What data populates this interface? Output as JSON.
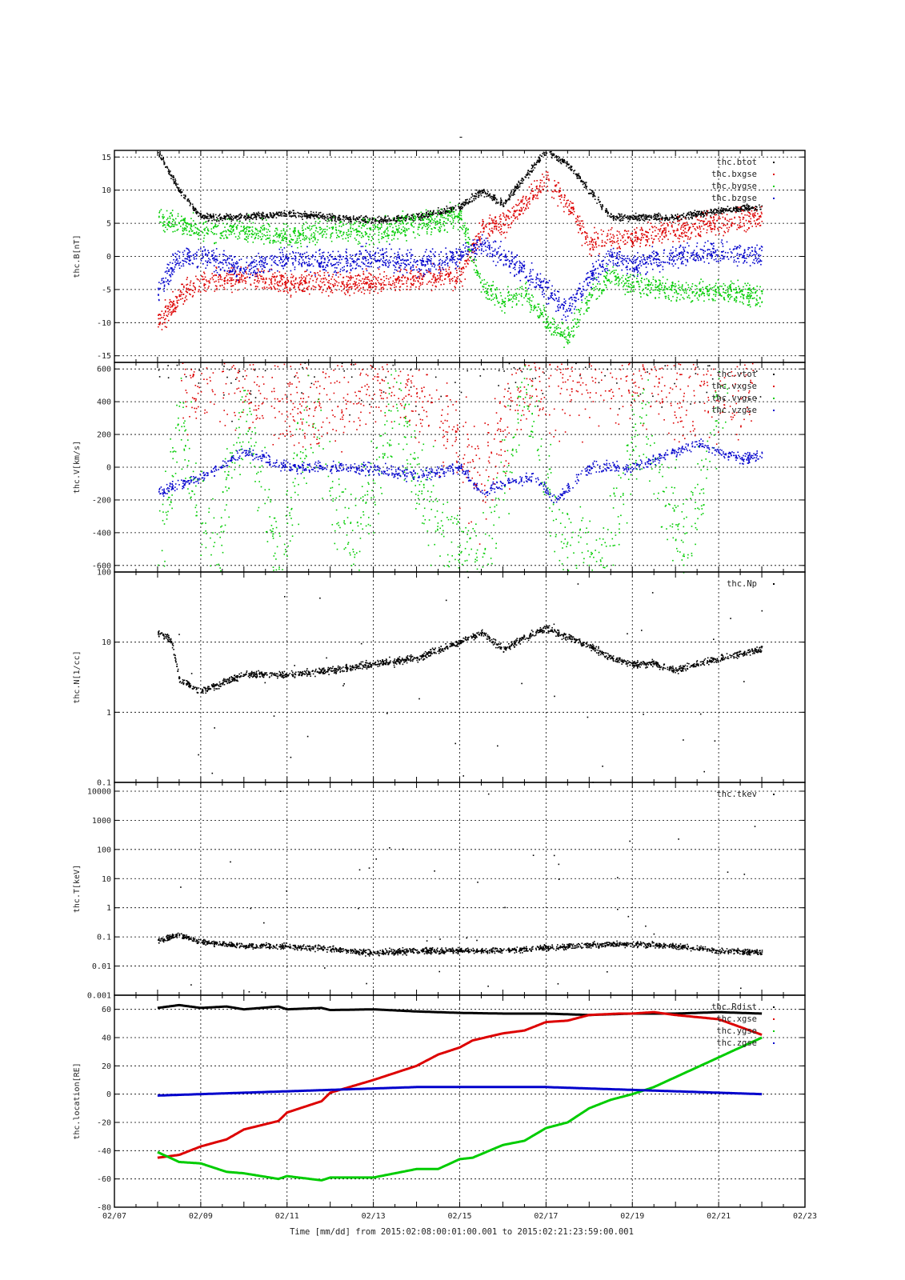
{
  "figure": {
    "title": "-",
    "footer": "Time [mm/dd]  from 2015:02:08:00:01:00.001  to  2015:02:21:23:59:00.001"
  },
  "colors": {
    "black": "#000000",
    "red": "#dd0000",
    "green": "#00cc00",
    "blue": "#0000cc"
  },
  "chart_data": [
    {
      "type": "scatter",
      "ylabel": "thc.B[nT]",
      "ylim": [
        -16,
        16
      ],
      "yticks": [
        15,
        10,
        5,
        0,
        -5,
        -10,
        -15
      ],
      "xlim": [
        "02/07",
        "02/23"
      ],
      "grid": true,
      "legend_placement": "top-right",
      "series": [
        {
          "name": "thc.btot",
          "color": "black",
          "x": [
            "02/08",
            "02/08.5",
            "02/09",
            "02/10",
            "02/11",
            "02/12",
            "02/13",
            "02/14",
            "02/15",
            "02/15.5",
            "02/16",
            "02/16.5",
            "02/17",
            "02/17.5",
            "02/18",
            "02/18.5",
            "02/19",
            "02/20",
            "02/21",
            "02/22"
          ],
          "values": [
            16,
            10,
            6,
            6,
            6.5,
            6,
            5.5,
            6,
            7.5,
            10,
            8,
            12,
            16,
            14,
            10,
            6,
            6,
            6,
            7,
            7.5
          ]
        },
        {
          "name": "thc.bxgse",
          "color": "red",
          "x": [
            "02/08",
            "02/08.5",
            "02/09",
            "02/10",
            "02/11",
            "02/12",
            "02/13",
            "02/14",
            "02/15",
            "02/15.5",
            "02/16",
            "02/16.5",
            "02/17",
            "02/17.5",
            "02/18",
            "02/18.5",
            "02/19",
            "02/20",
            "02/21",
            "02/22"
          ],
          "values": [
            -10,
            -6,
            -4,
            -3,
            -4,
            -4,
            -4,
            -3,
            -3,
            4,
            5,
            8,
            12,
            8,
            2,
            3,
            3,
            4,
            5,
            6
          ]
        },
        {
          "name": "thc.bygse",
          "color": "green",
          "x": [
            "02/08",
            "02/08.5",
            "02/09",
            "02/10",
            "02/11",
            "02/12",
            "02/13",
            "02/14",
            "02/15",
            "02/15.5",
            "02/16",
            "02/16.5",
            "02/17",
            "02/17.5",
            "02/18",
            "02/18.5",
            "02/19",
            "02/20",
            "02/21",
            "02/22"
          ],
          "values": [
            6,
            5,
            4,
            4,
            3,
            4,
            4,
            5,
            6,
            -4,
            -7,
            -5,
            -10,
            -12,
            -6,
            -3,
            -4,
            -5,
            -5,
            -6
          ]
        },
        {
          "name": "thc.bzgse",
          "color": "blue",
          "x": [
            "02/08",
            "02/08.5",
            "02/09",
            "02/10",
            "02/11",
            "02/12",
            "02/13",
            "02/14",
            "02/15",
            "02/15.5",
            "02/16",
            "02/16.5",
            "02/17",
            "02/17.5",
            "02/18",
            "02/18.5",
            "02/19",
            "02/20",
            "02/21",
            "02/22"
          ],
          "values": [
            -5,
            0,
            0,
            -2,
            0,
            -1,
            0,
            -1,
            0,
            2,
            0,
            -2,
            -5,
            -8,
            -3,
            0,
            -1,
            0,
            1,
            0
          ]
        }
      ]
    },
    {
      "type": "scatter",
      "ylabel": "thc.V[km/s]",
      "ylim": [
        -640,
        640
      ],
      "yticks": [
        600,
        400,
        200,
        0,
        -200,
        -400,
        -600
      ],
      "xlim": [
        "02/07",
        "02/23"
      ],
      "grid": true,
      "legend_placement": "top-right",
      "series": [
        {
          "name": "thc.vtot",
          "color": "black",
          "x": [
            "02/08",
            "02/22"
          ],
          "values": [
            640,
            640
          ]
        },
        {
          "name": "thc.vxgse",
          "color": "red",
          "x": [
            "02/08.5",
            "02/09.8",
            "02/10.8",
            "02/11.8",
            "02/13",
            "02/14.2",
            "02/15.5",
            "02/16.5",
            "02/18.2",
            "02/20.4",
            "02/21.8"
          ],
          "values": [
            600,
            450,
            400,
            350,
            550,
            450,
            -100,
            500,
            600,
            450,
            500
          ]
        },
        {
          "name": "thc.vygse",
          "color": "green",
          "x": [
            "02/08",
            "02/08.5",
            "02/09.3",
            "02/10",
            "02/10.8",
            "02/11.5",
            "02/12.5",
            "02/13.5",
            "02/14.5",
            "02/15.5",
            "02/16.5",
            "02/17.3",
            "02/18.3",
            "02/19.2",
            "02/20.2",
            "02/21.2"
          ],
          "values": [
            -500,
            300,
            -600,
            400,
            -600,
            300,
            -500,
            400,
            -400,
            -600,
            500,
            -400,
            -600,
            300,
            -500,
            600
          ]
        },
        {
          "name": "thc.vzgse",
          "color": "blue",
          "x": [
            "02/08",
            "02/08.3",
            "02/09",
            "02/10",
            "02/11",
            "02/12",
            "02/13",
            "02/14",
            "02/15",
            "02/15.5",
            "02/16",
            "02/16.7",
            "02/17.2",
            "02/18",
            "02/19",
            "02/20",
            "02/20.5",
            "02/21",
            "02/21.5",
            "02/22"
          ],
          "values": [
            -150,
            -120,
            -60,
            100,
            0,
            0,
            0,
            -50,
            0,
            -150,
            -100,
            -50,
            -200,
            0,
            0,
            100,
            150,
            100,
            50,
            80
          ]
        }
      ]
    },
    {
      "type": "scatter",
      "ylabel": "thc.N[1/cc]",
      "yscale": "log",
      "ylim": [
        0.1,
        100
      ],
      "yticks": [
        100,
        10,
        1,
        0.1
      ],
      "xlim": [
        "02/07",
        "02/23"
      ],
      "grid": true,
      "legend_placement": "top-right",
      "series": [
        {
          "name": "thc.Np",
          "color": "black",
          "x": [
            "02/08",
            "02/08.3",
            "02/08.5",
            "02/09",
            "02/10",
            "02/11",
            "02/12",
            "02/13",
            "02/14",
            "02/14.5",
            "02/15",
            "02/15.5",
            "02/16",
            "02/16.5",
            "02/17",
            "02/17.5",
            "02/18",
            "02/18.5",
            "02/19",
            "02/19.5",
            "02/20",
            "02/20.5",
            "02/21",
            "02/21.5",
            "02/22"
          ],
          "values": [
            14,
            11,
            3,
            2,
            3.5,
            3.5,
            4,
            5,
            6,
            8,
            10,
            14,
            8,
            12,
            16,
            12,
            9,
            6,
            5,
            5,
            4,
            5,
            6,
            7,
            8
          ]
        }
      ]
    },
    {
      "type": "scatter",
      "ylabel": "thc.T[keV]",
      "yscale": "log",
      "ylim": [
        0.001,
        20000
      ],
      "yticks": [
        10000,
        1000,
        100,
        10,
        1,
        0.1,
        0.01,
        0.001
      ],
      "xlim": [
        "02/07",
        "02/23"
      ],
      "grid": true,
      "legend_placement": "top-right",
      "series": [
        {
          "name": "thc.tkev",
          "color": "black",
          "x": [
            "02/08",
            "02/08.5",
            "02/09",
            "02/10",
            "02/11",
            "02/12",
            "02/13",
            "02/14",
            "02/15",
            "02/16",
            "02/17",
            "02/18",
            "02/19",
            "02/20",
            "02/21",
            "02/22"
          ],
          "values": [
            0.08,
            0.12,
            0.07,
            0.05,
            0.05,
            0.04,
            0.03,
            0.035,
            0.035,
            0.035,
            0.045,
            0.055,
            0.06,
            0.05,
            0.035,
            0.03
          ]
        }
      ]
    },
    {
      "type": "line",
      "ylabel": "thc.location[RE]",
      "ylim": [
        -80,
        70
      ],
      "yticks": [
        60,
        40,
        20,
        0,
        -20,
        -40,
        -60,
        -80
      ],
      "xlabel": "Time [mm/dd]",
      "xlim": [
        "02/07",
        "02/23"
      ],
      "xticks": [
        "02/07",
        "02/09",
        "02/11",
        "02/13",
        "02/15",
        "02/17",
        "02/19",
        "02/21",
        "02/23"
      ],
      "grid": true,
      "legend_placement": "top-right",
      "series": [
        {
          "name": "thc.Rdist",
          "color": "black",
          "x": [
            "02/08",
            "02/08.5",
            "02/09",
            "02/09.6",
            "02/10",
            "02/10.8",
            "02/11",
            "02/11.8",
            "02/12",
            "02/13",
            "02/14",
            "02/15",
            "02/16",
            "02/17",
            "02/18",
            "02/19",
            "02/20",
            "02/21",
            "02/22"
          ],
          "values": [
            61,
            63,
            61,
            62,
            60,
            62,
            60,
            61,
            59.5,
            60,
            58.5,
            57.5,
            57,
            57,
            56,
            57,
            57,
            58,
            57
          ]
        },
        {
          "name": "thc.xgse",
          "color": "red",
          "x": [
            "02/08",
            "02/08.5",
            "02/09",
            "02/09.6",
            "02/10",
            "02/10.8",
            "02/11",
            "02/11.8",
            "02/12",
            "02/13",
            "02/14",
            "02/14.5",
            "02/15",
            "02/15.3",
            "02/16",
            "02/16.5",
            "02/17",
            "02/17.5",
            "02/18",
            "02/18.7",
            "02/19",
            "02/19.5",
            "02/20",
            "02/21",
            "02/22"
          ],
          "values": [
            -45,
            -43,
            -37,
            -32,
            -25,
            -19,
            -13,
            -5,
            1,
            10,
            20,
            28,
            33,
            38,
            43,
            45,
            51,
            52,
            56,
            57,
            57,
            58,
            56,
            53,
            42
          ]
        },
        {
          "name": "thc.ygse",
          "color": "green",
          "x": [
            "02/08",
            "02/08.5",
            "02/09",
            "02/09.6",
            "02/10",
            "02/10.8",
            "02/11",
            "02/11.8",
            "02/12",
            "02/13",
            "02/14",
            "02/14.5",
            "02/15",
            "02/15.3",
            "02/16",
            "02/16.5",
            "02/17",
            "02/17.5",
            "02/18",
            "02/18.5",
            "02/19",
            "02/19.5",
            "02/20",
            "02/21",
            "02/22"
          ],
          "values": [
            -41,
            -48,
            -49,
            -55,
            -56,
            -60,
            -58,
            -61,
            -59,
            -59,
            -53,
            -53,
            -46,
            -45,
            -36,
            -33,
            -24,
            -20,
            -10,
            -4,
            0,
            5,
            12,
            26,
            40
          ]
        },
        {
          "name": "thc.zgse",
          "color": "blue",
          "x": [
            "02/08",
            "02/09",
            "02/10",
            "02/11",
            "02/12",
            "02/13",
            "02/14",
            "02/15",
            "02/16",
            "02/17",
            "02/18",
            "02/19",
            "02/20",
            "02/21",
            "02/22"
          ],
          "values": [
            -1,
            0,
            1,
            2,
            3,
            4,
            5,
            5,
            5,
            5,
            4,
            3,
            2,
            1,
            0
          ]
        }
      ]
    }
  ]
}
